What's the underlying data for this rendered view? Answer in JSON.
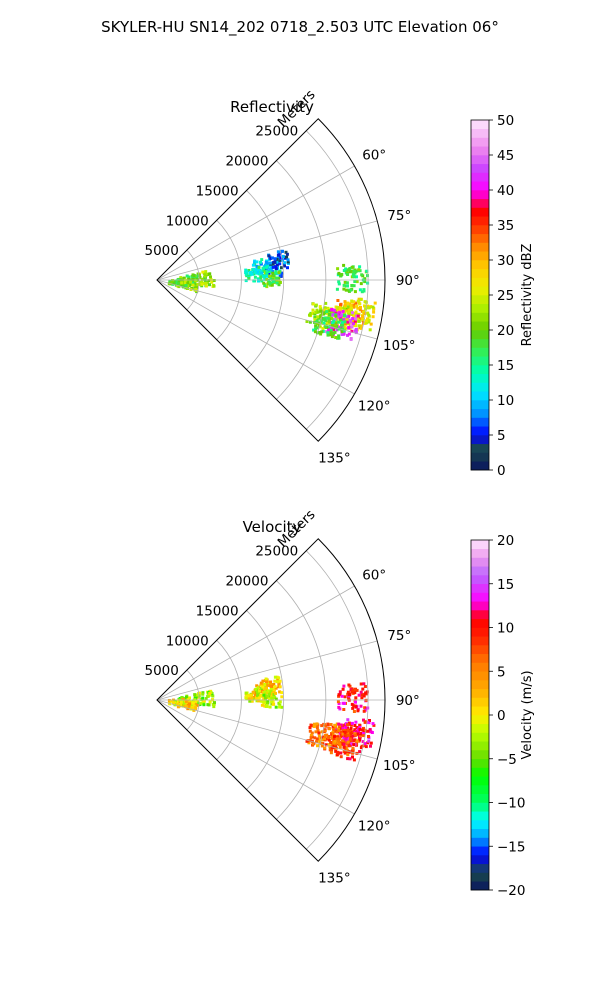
{
  "figure": {
    "title": "SKYLER-HU  SN14_202  0718_2.503 UTC Elevation 06°"
  },
  "chart_data": [
    {
      "type": "polar-sector",
      "title": "Reflectivity",
      "range_label": "Meters",
      "range_ticks": [
        "5000",
        "10000",
        "15000",
        "20000",
        "25000"
      ],
      "range_tick_values": [
        5000,
        10000,
        15000,
        20000,
        25000
      ],
      "range_max": 27000,
      "azimuth_range_deg": [
        45,
        135
      ],
      "angle_tick_values": [
        60,
        75,
        90,
        105,
        120,
        135
      ],
      "angle_ticks": [
        "60°",
        "75°",
        "90°",
        "105°",
        "120°",
        "135°"
      ],
      "colorbar": {
        "label": "Reflectivity dBZ",
        "min": 0,
        "max": 50,
        "ticks": [
          "0",
          "5",
          "10",
          "15",
          "20",
          "25",
          "30",
          "35",
          "40",
          "45",
          "50"
        ],
        "tick_values": [
          0,
          5,
          10,
          15,
          20,
          25,
          30,
          35,
          40,
          45,
          50
        ],
        "stops": [
          {
            "v": 0,
            "c": "#0a1460"
          },
          {
            "v": 3,
            "c": "#1a4b4b"
          },
          {
            "v": 5,
            "c": "#0000ff"
          },
          {
            "v": 8,
            "c": "#0090ff"
          },
          {
            "v": 11,
            "c": "#00e6ff"
          },
          {
            "v": 14,
            "c": "#00ffb0"
          },
          {
            "v": 17,
            "c": "#33ee55"
          },
          {
            "v": 20,
            "c": "#66cc00"
          },
          {
            "v": 23,
            "c": "#aaee00"
          },
          {
            "v": 26,
            "c": "#eeee00"
          },
          {
            "v": 29,
            "c": "#ffcc00"
          },
          {
            "v": 32,
            "c": "#ff8800"
          },
          {
            "v": 35,
            "c": "#ff3000"
          },
          {
            "v": 37,
            "c": "#ff0000"
          },
          {
            "v": 40,
            "c": "#ff00ff"
          },
          {
            "v": 43,
            "c": "#cc44ff"
          },
          {
            "v": 46,
            "c": "#ee88ee"
          },
          {
            "v": 50,
            "c": "#ffe8ff"
          }
        ]
      },
      "echoes": [
        {
          "az": 84,
          "r": 13500,
          "value": 8
        },
        {
          "az": 82,
          "r": 12500,
          "value": 12
        },
        {
          "az": 80,
          "r": 14500,
          "value": 6
        },
        {
          "az": 86,
          "r": 11500,
          "value": 14
        },
        {
          "az": 87,
          "r": 5500,
          "value": 22
        },
        {
          "az": 88,
          "r": 3500,
          "value": 20
        },
        {
          "az": 93,
          "r": 2500,
          "value": 19
        },
        {
          "az": 96,
          "r": 3500,
          "value": 21
        },
        {
          "az": 101,
          "r": 21500,
          "value": 24
        },
        {
          "az": 100,
          "r": 23000,
          "value": 30
        },
        {
          "az": 102,
          "r": 20000,
          "value": 22
        },
        {
          "az": 99,
          "r": 24000,
          "value": 26
        },
        {
          "az": 103,
          "r": 22500,
          "value": 42
        },
        {
          "az": 104,
          "r": 21000,
          "value": 18
        },
        {
          "az": 89,
          "r": 23000,
          "value": 18
        },
        {
          "az": 89,
          "r": 13500,
          "value": 19
        }
      ]
    },
    {
      "type": "polar-sector",
      "title": "Velocity",
      "range_label": "Meters",
      "range_ticks": [
        "5000",
        "10000",
        "15000",
        "20000",
        "25000"
      ],
      "range_tick_values": [
        5000,
        10000,
        15000,
        20000,
        25000
      ],
      "range_max": 27000,
      "azimuth_range_deg": [
        45,
        135
      ],
      "angle_tick_values": [
        60,
        75,
        90,
        105,
        120,
        135
      ],
      "angle_ticks": [
        "60°",
        "75°",
        "90°",
        "105°",
        "120°",
        "135°"
      ],
      "colorbar": {
        "label": "Velocity (m/s)",
        "min": -20,
        "max": 20,
        "ticks": [
          "−20",
          "−15",
          "−10",
          "−5",
          "0",
          "5",
          "10",
          "15",
          "20"
        ],
        "tick_values": [
          -20,
          -15,
          -10,
          -5,
          0,
          5,
          10,
          15,
          20
        ],
        "stops": [
          {
            "v": -20,
            "c": "#0a1460"
          },
          {
            "v": -18,
            "c": "#1a4b4b"
          },
          {
            "v": -16,
            "c": "#0000ff"
          },
          {
            "v": -14,
            "c": "#00a0ff"
          },
          {
            "v": -12,
            "c": "#00ffff"
          },
          {
            "v": -10,
            "c": "#00ff66"
          },
          {
            "v": -7,
            "c": "#00ff00"
          },
          {
            "v": -5,
            "c": "#66dd00"
          },
          {
            "v": -2,
            "c": "#bbff00"
          },
          {
            "v": 0,
            "c": "#ffee00"
          },
          {
            "v": 3,
            "c": "#ffaa00"
          },
          {
            "v": 6,
            "c": "#ff7700"
          },
          {
            "v": 9,
            "c": "#ff2000"
          },
          {
            "v": 11,
            "c": "#ff0000"
          },
          {
            "v": 13,
            "c": "#ff00ff"
          },
          {
            "v": 16,
            "c": "#bb66ff"
          },
          {
            "v": 18,
            "c": "#ee99ee"
          },
          {
            "v": 20,
            "c": "#ffe8ff"
          }
        ]
      },
      "echoes": [
        {
          "az": 84,
          "r": 12500,
          "value": 1
        },
        {
          "az": 82,
          "r": 13500,
          "value": 2
        },
        {
          "az": 86,
          "r": 11500,
          "value": -1
        },
        {
          "az": 87,
          "r": 5500,
          "value": -3
        },
        {
          "az": 88,
          "r": 3500,
          "value": -4
        },
        {
          "az": 93,
          "r": 2500,
          "value": 0
        },
        {
          "az": 96,
          "r": 3500,
          "value": 1
        },
        {
          "az": 101,
          "r": 21500,
          "value": 7
        },
        {
          "az": 100,
          "r": 23000,
          "value": 10
        },
        {
          "az": 102,
          "r": 20000,
          "value": 6
        },
        {
          "az": 99,
          "r": 24000,
          "value": 11
        },
        {
          "az": 103,
          "r": 22500,
          "value": 8
        },
        {
          "az": 89,
          "r": 23000,
          "value": 10
        },
        {
          "az": 89,
          "r": 13500,
          "value": -2
        }
      ]
    }
  ]
}
